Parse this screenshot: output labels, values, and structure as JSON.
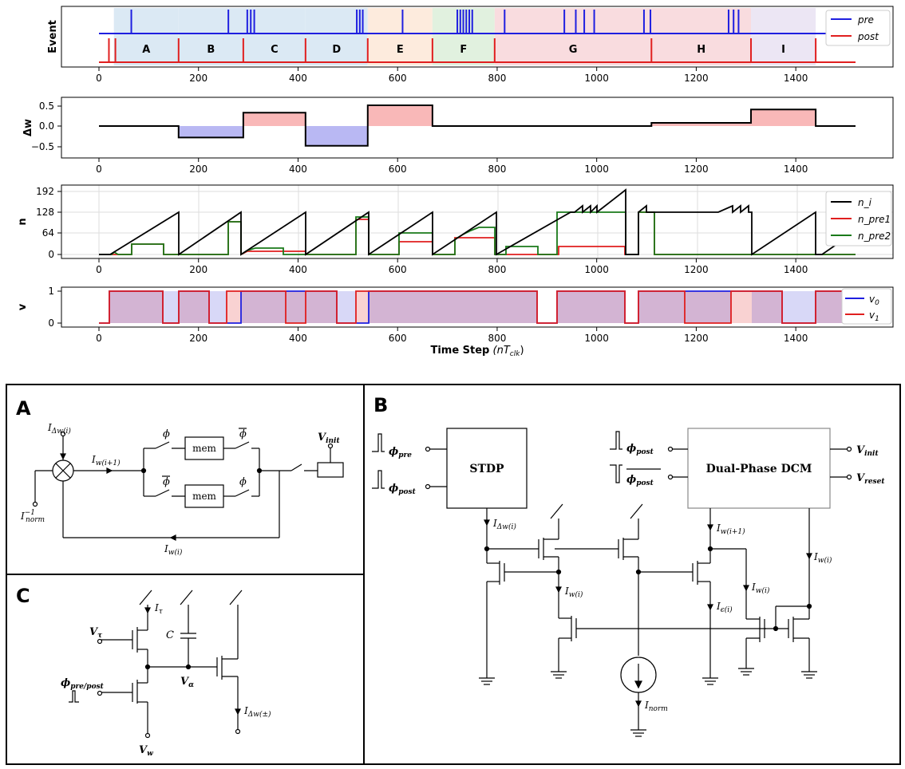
{
  "top_plots": {
    "event_panel": {
      "ylabel": "Event",
      "segments": [
        {
          "label": "A",
          "start": 30,
          "end": 160,
          "color": "#dbe9f4"
        },
        {
          "label": "B",
          "start": 160,
          "end": 290,
          "color": "#dbe9f4"
        },
        {
          "label": "C",
          "start": 290,
          "end": 415,
          "color": "#dbe9f4"
        },
        {
          "label": "D",
          "start": 415,
          "end": 540,
          "color": "#dbe9f4"
        },
        {
          "label": "E",
          "start": 540,
          "end": 670,
          "color": "#fdebdd"
        },
        {
          "label": "F",
          "start": 670,
          "end": 795,
          "color": "#e1f1df"
        },
        {
          "label": "G",
          "start": 795,
          "end": 1110,
          "color": "#f9dcdf"
        },
        {
          "label": "H",
          "start": 1110,
          "end": 1310,
          "color": "#f9dcdf"
        },
        {
          "label": "I",
          "start": 1310,
          "end": 1440,
          "color": "#ece6f4"
        }
      ],
      "pre_spikes": [
        65,
        260,
        298,
        305,
        312,
        518,
        524,
        530,
        610,
        720,
        726,
        732,
        738,
        744,
        750,
        815,
        935,
        958,
        975,
        995,
        1095,
        1108,
        1265,
        1275,
        1285
      ],
      "post_spikes": [
        20,
        33,
        160,
        290,
        415,
        540,
        670,
        795,
        1110,
        1310,
        1440
      ],
      "legend": [
        "pre",
        "post"
      ],
      "colors": {
        "pre": "#1f1fe0",
        "post": "#e01f1f"
      }
    },
    "dw_panel": {
      "ylabel": "Δw",
      "yticks": [
        "0.5",
        "0.0",
        "−0.5"
      ],
      "steps": [
        [
          0,
          0
        ],
        [
          160,
          0
        ],
        [
          160,
          -0.36
        ],
        [
          290,
          -0.36
        ],
        [
          290,
          0.42
        ],
        [
          415,
          0.42
        ],
        [
          415,
          -0.62
        ],
        [
          540,
          -0.62
        ],
        [
          540,
          0.65
        ],
        [
          670,
          0.65
        ],
        [
          670,
          0
        ],
        [
          1110,
          0
        ],
        [
          1110,
          0.1
        ],
        [
          1310,
          0.1
        ],
        [
          1310,
          0.52
        ],
        [
          1440,
          0.52
        ],
        [
          1440,
          0
        ],
        [
          1520,
          0
        ]
      ]
    },
    "n_panel": {
      "ylabel": "n",
      "yticks": [
        "192",
        "128",
        "64",
        "0"
      ],
      "legend": [
        "n_i",
        "n_pre1",
        "n_pre2"
      ],
      "legend_sub": [
        "i",
        "pre1",
        "pre2"
      ],
      "colors": {
        "n_i": "#000000",
        "n_pre1": "#e01f1f",
        "n_pre2": "#1a7a1a"
      }
    },
    "v_panel": {
      "ylabel": "v",
      "yticks": [
        "1",
        "0"
      ],
      "legend": [
        "v",
        "v"
      ],
      "legend_sub": [
        "0",
        "1"
      ],
      "xlabel": "Time Step",
      "xlabel_unit": "(nT",
      "xlabel_unit_sub": "clk",
      "xlabel_unit_close": ")"
    },
    "xticks": [
      "0",
      "200",
      "400",
      "600",
      "800",
      "1000",
      "1200",
      "1400"
    ]
  },
  "panel_a": {
    "label": "A",
    "i_dw": "I",
    "i_dw_sub": "Δw(i)",
    "i_w_next": "I",
    "i_w_next_sub": "w(i+1)",
    "i_norm": "I",
    "i_norm_sup": "−1",
    "i_norm_sub": "norm",
    "i_w": "I",
    "i_w_sub": "w(i)",
    "mem": "mem",
    "phi": "ϕ",
    "v_init": "V",
    "v_init_sub": "init"
  },
  "panel_b": {
    "label": "B",
    "stdp": "STDP",
    "dcm": "Dual-Phase DCM",
    "phi_pre": "ϕ",
    "phi_pre_sub": "pre",
    "phi_post": "ϕ",
    "phi_post_sub": "post",
    "v_init": "V",
    "v_init_sub": "init",
    "v_reset": "V",
    "v_reset_sub": "reset",
    "i_dw": "I",
    "i_dw_sub": "Δw(i)",
    "i_w_next": "I",
    "i_w_next_sub": "w(i+1)",
    "i_w": "I",
    "i_w_sub": "w(i)",
    "i_eps": "I",
    "i_eps_sub": "ϵ(i)",
    "i_norm": "I",
    "i_norm_sub": "norm"
  },
  "panel_c": {
    "label": "C",
    "i_tau": "I",
    "i_tau_sub": "τ",
    "cap": "C",
    "v_tau": "V",
    "v_tau_sub": "τ",
    "phi": "ϕ",
    "phi_sub": "pre/post",
    "v_alpha": "V",
    "v_alpha_sub": "α",
    "v_w": "V",
    "v_w_sub": "w",
    "i_dw": "I",
    "i_dw_sub": "Δw(±)"
  }
}
